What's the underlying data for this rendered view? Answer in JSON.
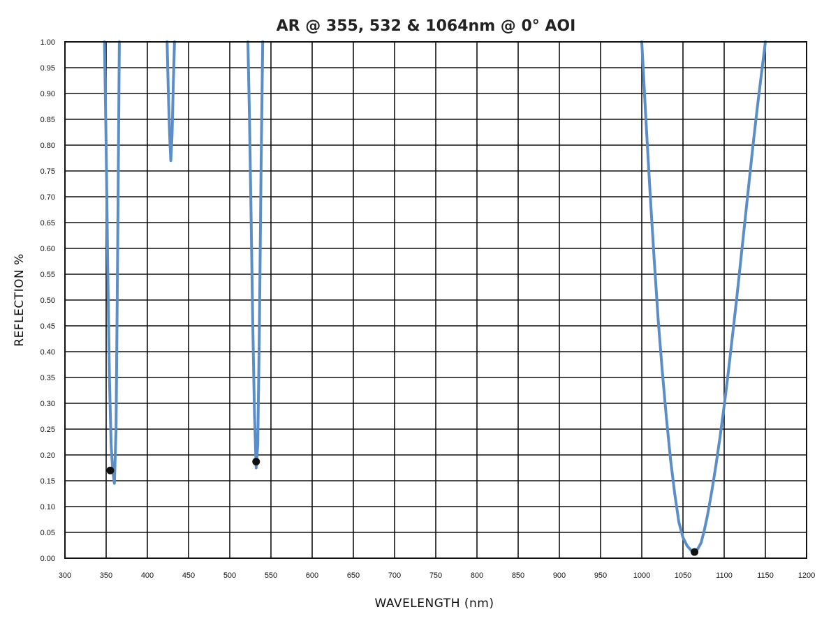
{
  "chart_data": {
    "type": "line",
    "title": "AR @ 355, 532 & 1064nm @ 0° AOI",
    "xlabel": "WAVELENGTH (nm)",
    "ylabel": "REFLECTION %",
    "xlim": [
      300,
      1200
    ],
    "ylim": [
      0,
      1
    ],
    "x_ticks": [
      300,
      350,
      400,
      450,
      500,
      550,
      600,
      650,
      700,
      750,
      800,
      850,
      900,
      950,
      1000,
      1050,
      1100,
      1150,
      1200
    ],
    "x_tick_labels": [
      "300",
      "350",
      "400",
      "450",
      "500",
      "550",
      "600",
      "650",
      "700",
      "750",
      "800",
      "850",
      "900",
      "950",
      "1000",
      "1050",
      "1100",
      "1150",
      "1200"
    ],
    "y_ticks": [
      0,
      0.05,
      0.1,
      0.15,
      0.2,
      0.25,
      0.3,
      0.35,
      0.4,
      0.45,
      0.5,
      0.55,
      0.6,
      0.65,
      0.7,
      0.75,
      0.8,
      0.85,
      0.9,
      0.95,
      1.0
    ],
    "y_tick_labels": [
      "0.00",
      "0.05",
      "0.10",
      "0.15",
      "0.20",
      "0.25",
      "0.30",
      "0.35",
      "0.40",
      "0.45",
      "0.50",
      "0.55",
      "0.60",
      "0.65",
      "0.70",
      "0.75",
      "0.80",
      "0.85",
      "0.90",
      "0.95",
      "1.00"
    ],
    "grid": true,
    "line_color": "#5b8ec9",
    "marker_color": "#111111",
    "series": [
      {
        "segments": [
          [
            [
              348,
              1.0
            ],
            [
              350,
              0.8
            ],
            [
              352,
              0.55
            ],
            [
              354,
              0.35
            ],
            [
              356,
              0.22
            ],
            [
              358,
              0.17
            ],
            [
              360,
              0.145
            ],
            [
              362,
              0.25
            ],
            [
              364,
              0.6
            ],
            [
              366,
              1.0
            ]
          ],
          [
            [
              424,
              1.0
            ],
            [
              425.5,
              0.9
            ],
            [
              427,
              0.82
            ],
            [
              428.5,
              0.77
            ],
            [
              430,
              0.82
            ],
            [
              431.5,
              0.92
            ],
            [
              433,
              1.0
            ]
          ],
          [
            [
              522,
              1.0
            ],
            [
              524,
              0.85
            ],
            [
              526,
              0.65
            ],
            [
              528,
              0.45
            ],
            [
              530,
              0.28
            ],
            [
              532,
              0.175
            ],
            [
              534,
              0.22
            ],
            [
              536,
              0.45
            ],
            [
              538,
              0.75
            ],
            [
              540,
              1.0
            ]
          ],
          [
            [
              1000,
              1.0
            ],
            [
              1005,
              0.85
            ],
            [
              1010,
              0.71
            ],
            [
              1015,
              0.58
            ],
            [
              1020,
              0.46
            ],
            [
              1025,
              0.36
            ],
            [
              1030,
              0.27
            ],
            [
              1035,
              0.19
            ],
            [
              1040,
              0.125
            ],
            [
              1045,
              0.07
            ],
            [
              1050,
              0.04
            ],
            [
              1055,
              0.024
            ],
            [
              1060,
              0.015
            ],
            [
              1064,
              0.012
            ],
            [
              1068,
              0.018
            ],
            [
              1072,
              0.03
            ],
            [
              1076,
              0.055
            ],
            [
              1080,
              0.085
            ],
            [
              1085,
              0.13
            ],
            [
              1090,
              0.18
            ],
            [
              1095,
              0.235
            ],
            [
              1100,
              0.295
            ],
            [
              1105,
              0.36
            ],
            [
              1110,
              0.43
            ],
            [
              1115,
              0.5
            ],
            [
              1120,
              0.575
            ],
            [
              1125,
              0.65
            ],
            [
              1130,
              0.725
            ],
            [
              1135,
              0.8
            ],
            [
              1140,
              0.87
            ],
            [
              1145,
              0.935
            ],
            [
              1150,
              1.0
            ]
          ]
        ]
      }
    ],
    "markers": [
      {
        "x": 355,
        "y": 0.17
      },
      {
        "x": 532,
        "y": 0.187
      },
      {
        "x": 1064,
        "y": 0.012
      }
    ]
  }
}
